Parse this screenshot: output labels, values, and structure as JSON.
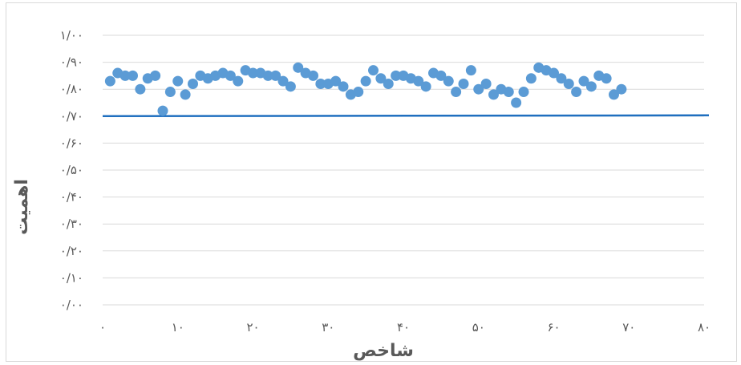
{
  "chart_data": {
    "type": "scatter",
    "title": "",
    "xlabel": "شاخص",
    "ylabel": "اهمیت",
    "xlim": [
      0,
      80
    ],
    "ylim": [
      0,
      1
    ],
    "x_ticks": [
      0,
      10,
      20,
      30,
      40,
      50,
      60,
      70,
      80
    ],
    "y_ticks": [
      0,
      0.1,
      0.2,
      0.3,
      0.4,
      0.5,
      0.6,
      0.7,
      0.8,
      0.9,
      1.0
    ],
    "x_tick_labels": [
      "۰",
      "۱۰",
      "۲۰",
      "۳۰",
      "۴۰",
      "۵۰",
      "۶۰",
      "۷۰",
      "۸۰"
    ],
    "y_tick_labels": [
      "۰/۰۰",
      "۰/۱۰",
      "۰/۲۰",
      "۰/۳۰",
      "۰/۴۰",
      "۰/۵۰",
      "۰/۶۰",
      "۰/۷۰",
      "۰/۸۰",
      "۰/۹۰",
      "۱/۰۰"
    ],
    "grid": true,
    "legend": "none",
    "colors": {
      "points": "#5b9bd5",
      "threshold": "#1f6fbf",
      "grid": "#d9d9d9",
      "text": "#595959"
    },
    "threshold": {
      "y": 0.7
    },
    "series": [
      {
        "x": [
          1,
          2,
          3,
          4,
          5,
          6,
          7,
          8,
          9,
          10,
          11,
          12,
          13,
          14,
          15,
          16,
          17,
          18,
          19,
          20,
          21,
          22,
          23,
          24,
          25,
          26,
          27,
          28,
          29,
          30,
          31,
          32,
          33,
          34,
          35,
          36,
          37,
          38,
          39,
          40,
          41,
          42,
          43,
          44,
          45,
          46,
          47,
          48,
          49,
          50,
          51,
          52,
          53,
          54,
          55,
          56,
          57,
          58,
          59,
          60,
          61,
          62,
          63,
          64,
          65,
          66,
          67,
          68,
          69
        ],
        "y": [
          0.83,
          0.86,
          0.85,
          0.85,
          0.8,
          0.84,
          0.85,
          0.72,
          0.79,
          0.83,
          0.78,
          0.82,
          0.85,
          0.84,
          0.85,
          0.86,
          0.85,
          0.83,
          0.87,
          0.86,
          0.86,
          0.85,
          0.85,
          0.83,
          0.81,
          0.88,
          0.86,
          0.85,
          0.82,
          0.82,
          0.83,
          0.81,
          0.78,
          0.79,
          0.83,
          0.87,
          0.84,
          0.82,
          0.85,
          0.85,
          0.84,
          0.83,
          0.81,
          0.86,
          0.85,
          0.83,
          0.79,
          0.82,
          0.87,
          0.8,
          0.82,
          0.78,
          0.8,
          0.79,
          0.75,
          0.79,
          0.84,
          0.88,
          0.87,
          0.86,
          0.84,
          0.82,
          0.79,
          0.83,
          0.81,
          0.85,
          0.84,
          0.78,
          0.8
        ]
      }
    ]
  }
}
